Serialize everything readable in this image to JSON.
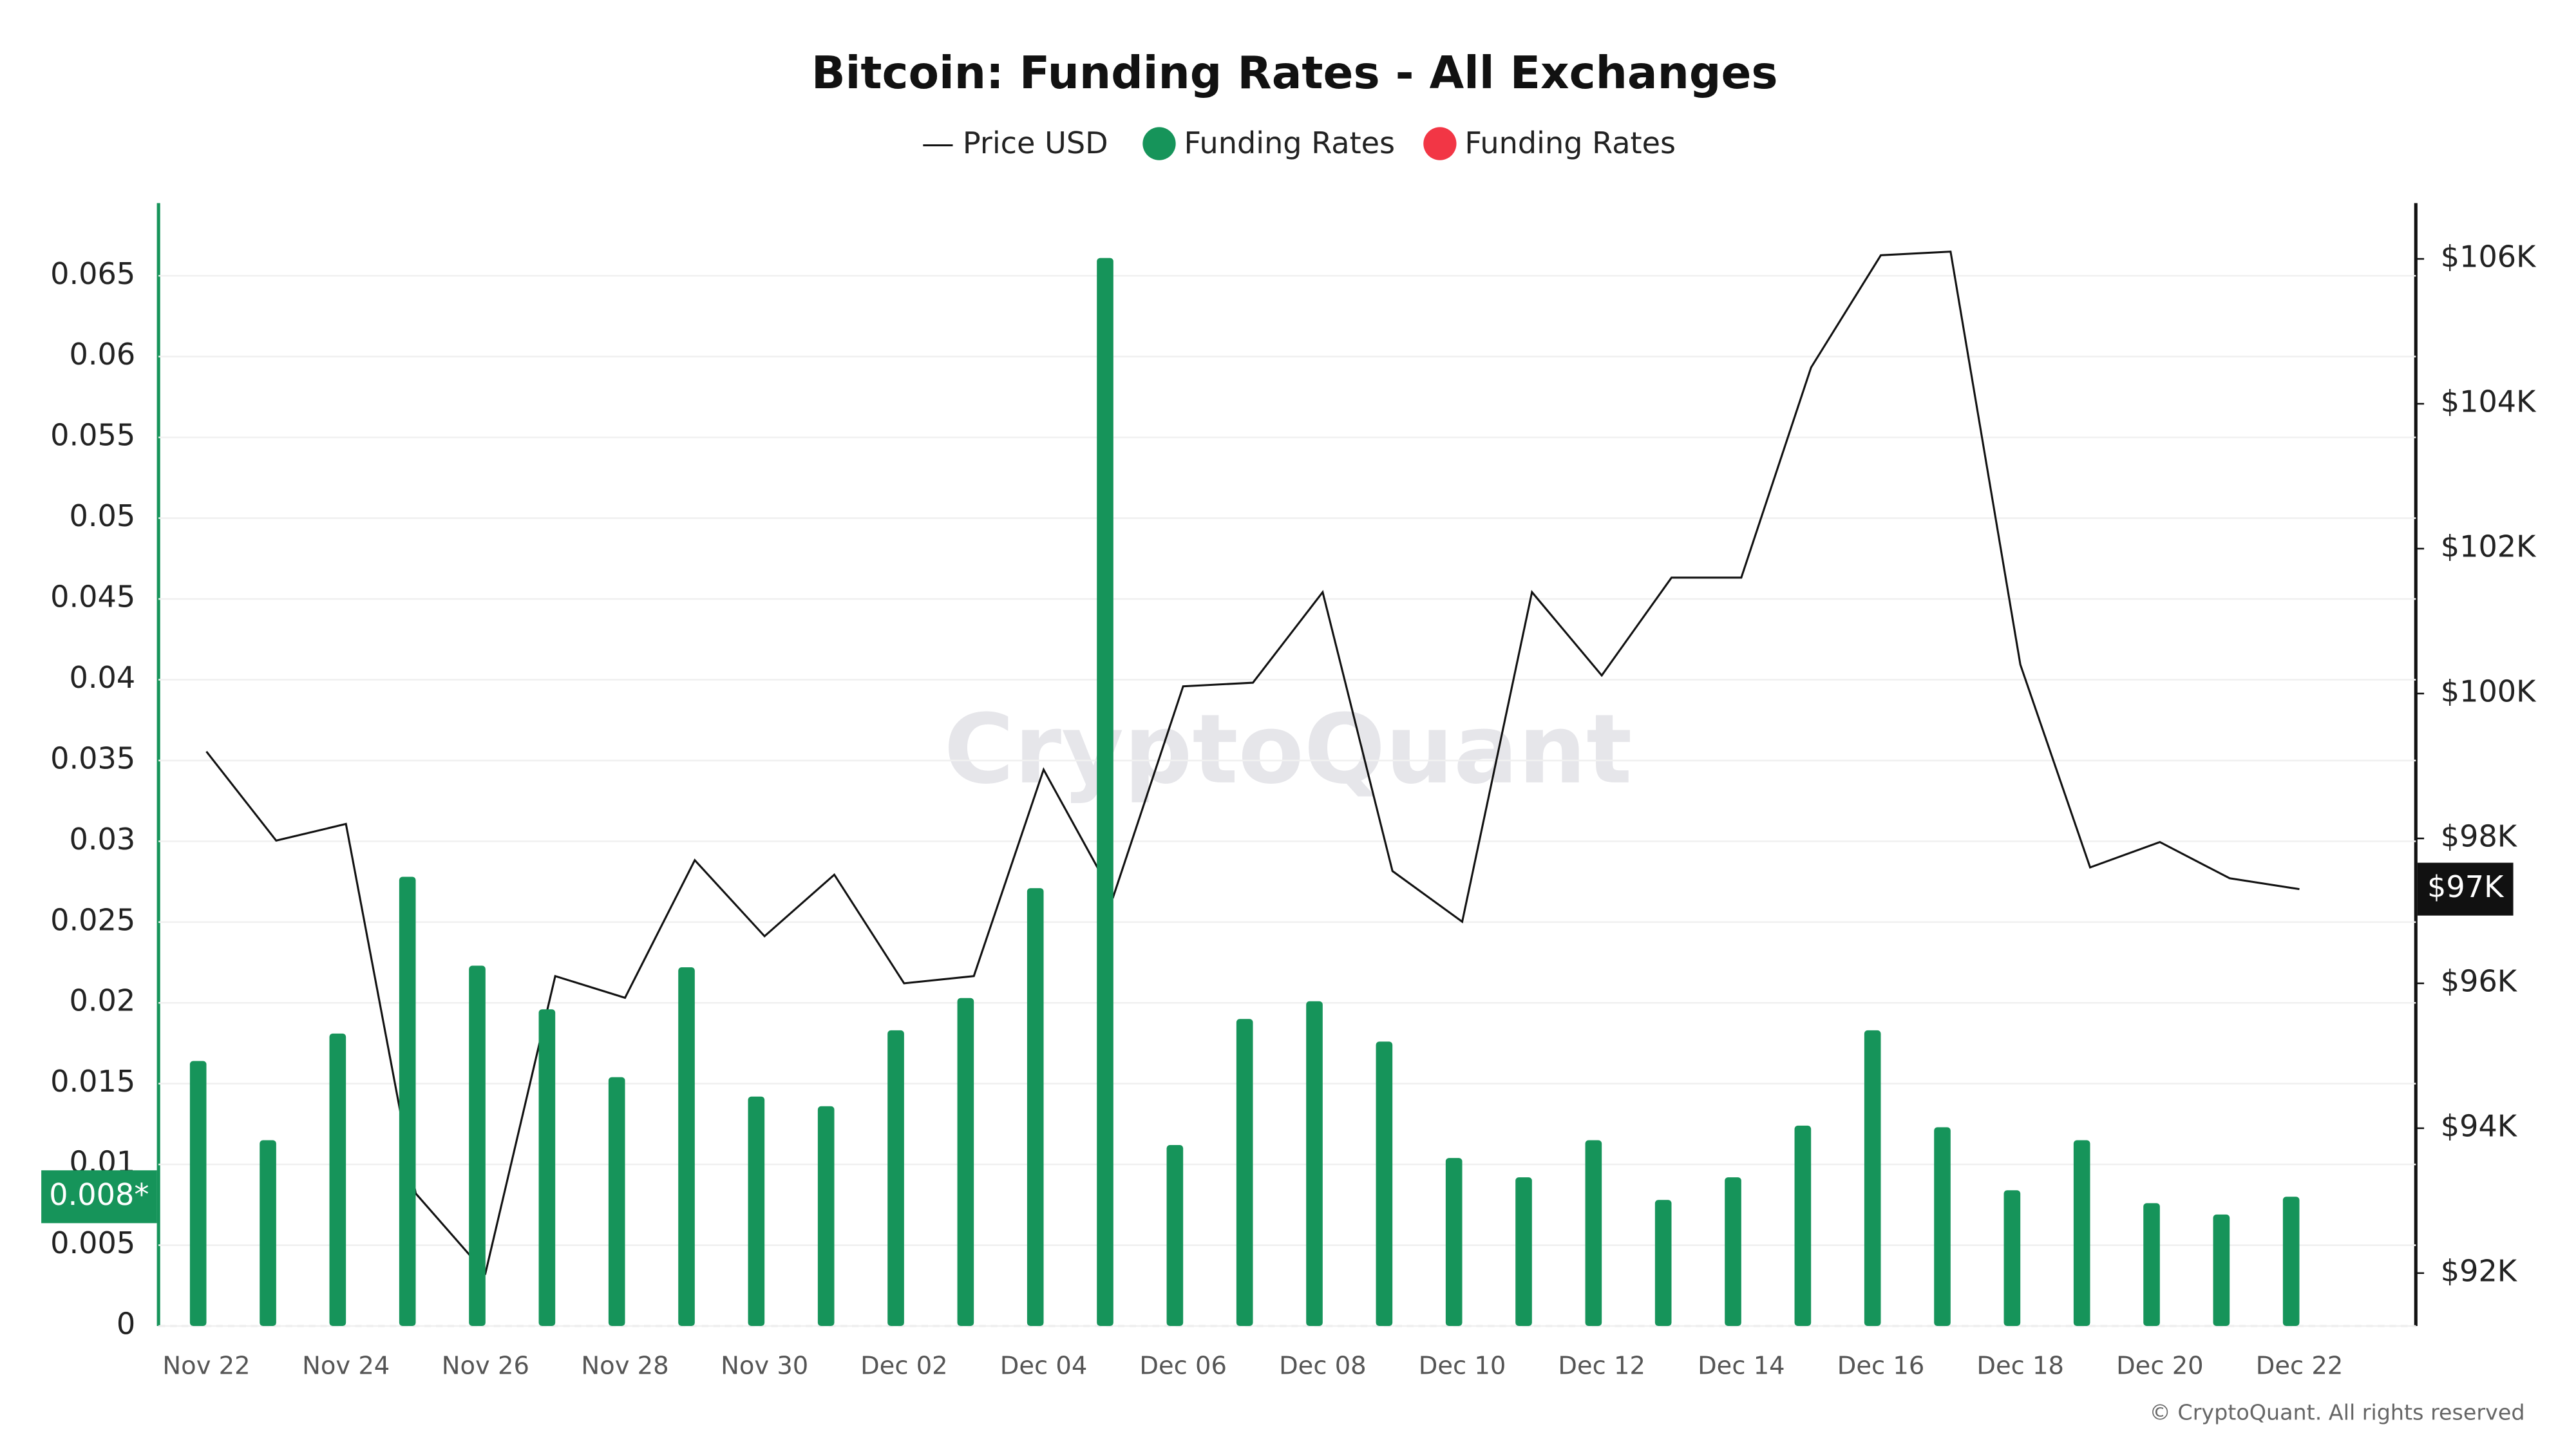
{
  "chart_data": {
    "type": "bar",
    "title": "Bitcoin: Funding Rates - All Exchanges",
    "categories": [
      "Nov 22",
      null,
      "Nov 24",
      null,
      "Nov 26",
      null,
      "Nov 28",
      null,
      "Nov 30",
      null,
      "Dec 02",
      null,
      "Dec 04",
      null,
      "Dec 06",
      null,
      "Dec 08",
      null,
      "Dec 10",
      null,
      "Dec 12",
      null,
      "Dec 14",
      null,
      "Dec 16",
      null,
      "Dec 18",
      null,
      "Dec 20",
      null,
      "Dec 22"
    ],
    "series": [
      {
        "name": "Price USD",
        "type": "line",
        "color": "#111111",
        "axis": "y2",
        "last_label": "$97K",
        "values": [
          99200,
          97970,
          98200,
          93100,
          92000,
          96100,
          95800,
          97700,
          96650,
          97500,
          96000,
          96100,
          98950,
          97200,
          100100,
          100150,
          101400,
          97550,
          96850,
          101400,
          100250,
          101600,
          101600,
          104500,
          106050,
          106100,
          100400,
          97600,
          97950,
          97450,
          97300
        ]
      },
      {
        "name": "Funding Rates",
        "type": "bar",
        "color": "#16945a",
        "last_label": "0.008*",
        "values": [
          0.0164,
          0.0115,
          0.0181,
          0.0278,
          0.0223,
          0.0196,
          0.0154,
          0.0222,
          0.0142,
          0.0136,
          0.0183,
          0.0203,
          0.0271,
          0.0661,
          0.0112,
          0.019,
          0.0201,
          0.0176,
          0.0104,
          0.0092,
          0.0115,
          0.0078,
          0.0092,
          0.0124,
          0.0183,
          0.0123,
          0.0084,
          0.0115,
          0.0076,
          0.0069,
          0.008
        ]
      },
      {
        "name": "Funding Rates",
        "type": "bar",
        "color": "#f23645",
        "values": [
          null,
          null,
          null,
          null,
          null,
          null,
          null,
          null,
          null,
          null,
          null,
          null,
          null,
          null,
          null,
          null,
          null,
          null,
          null,
          null,
          null,
          null,
          null,
          null,
          null,
          null,
          null,
          null,
          null,
          null,
          null
        ]
      }
    ],
    "ylim": [
      0,
      0.0695
    ],
    "yticks": [
      0,
      0.005,
      0.01,
      0.015,
      0.02,
      0.025,
      0.03,
      0.035,
      0.04,
      0.045,
      0.05,
      0.055,
      0.06,
      0.065
    ],
    "y2lim": [
      91270,
      106770
    ],
    "y2ticks": [
      {
        "value": 92000,
        "label": "$92K"
      },
      {
        "value": 94000,
        "label": "$94K"
      },
      {
        "value": 96000,
        "label": "$96K"
      },
      {
        "value": 98000,
        "label": "$98K"
      },
      {
        "value": 100000,
        "label": "$100K"
      },
      {
        "value": 102000,
        "label": "$102K"
      },
      {
        "value": 104000,
        "label": "$104K"
      },
      {
        "value": 106000,
        "label": "$106K"
      }
    ],
    "grid": true,
    "watermark": "CryptoQuant",
    "copyright": "© CryptoQuant. All rights reserved"
  }
}
